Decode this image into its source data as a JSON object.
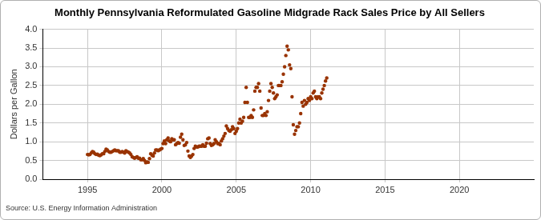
{
  "chart_data": {
    "type": "scatter",
    "title": "Monthly Pennsylvania Reformulated Gasoline Midgrade Rack Sales Price by All Sellers",
    "y_label": "Dollars per Gallon",
    "source": "Source: U.S. Energy Information Administration",
    "color": "#993300",
    "marker": "circle",
    "grid": true,
    "xlim": [
      1992,
      2025
    ],
    "xticks": [
      1995,
      2000,
      2005,
      2010,
      2015,
      2020
    ],
    "ylim": [
      0,
      4
    ],
    "yticks": [
      {
        "value": 0,
        "label": "0.0"
      },
      0.5,
      {
        "value": 1,
        "label": "1.0"
      },
      1.5,
      {
        "value": 2,
        "label": "2.0"
      },
      2.5,
      {
        "value": 3,
        "label": "3.0"
      },
      3.5,
      {
        "value": 4,
        "label": "4.0"
      }
    ],
    "x": [
      1995,
      1995.083,
      1995.167,
      1995.25,
      1995.333,
      1995.417,
      1995.5,
      1995.583,
      1995.667,
      1995.75,
      1995.833,
      1995.917,
      1996,
      1996.083,
      1996.167,
      1996.25,
      1996.333,
      1996.417,
      1996.5,
      1996.583,
      1996.667,
      1996.75,
      1996.833,
      1996.917,
      1997,
      1997.083,
      1997.167,
      1997.25,
      1997.333,
      1997.417,
      1997.5,
      1997.583,
      1997.667,
      1997.75,
      1997.833,
      1997.917,
      1998,
      1998.083,
      1998.167,
      1998.25,
      1998.333,
      1998.417,
      1998.5,
      1998.583,
      1998.667,
      1998.75,
      1998.833,
      1998.917,
      1999,
      1999.083,
      1999.167,
      1999.25,
      1999.333,
      1999.417,
      1999.5,
      1999.583,
      1999.667,
      1999.75,
      1999.833,
      1999.917,
      2000,
      2000.083,
      2000.167,
      2000.25,
      2000.333,
      2000.417,
      2000.5,
      2000.583,
      2000.667,
      2000.75,
      2000.833,
      2000.917,
      2001,
      2001.083,
      2001.167,
      2001.25,
      2001.333,
      2001.417,
      2001.5,
      2001.583,
      2001.667,
      2001.75,
      2001.833,
      2001.917,
      2002,
      2002.083,
      2002.167,
      2002.25,
      2002.333,
      2002.417,
      2002.5,
      2002.583,
      2002.667,
      2002.75,
      2002.833,
      2002.917,
      2003,
      2003.083,
      2003.167,
      2003.25,
      2003.333,
      2003.417,
      2003.5,
      2003.583,
      2003.667,
      2003.75,
      2003.833,
      2003.917,
      2004,
      2004.083,
      2004.167,
      2004.25,
      2004.333,
      2004.417,
      2004.5,
      2004.583,
      2004.667,
      2004.75,
      2004.833,
      2004.917,
      2005,
      2005.083,
      2005.167,
      2005.25,
      2005.333,
      2005.417,
      2005.5,
      2005.583,
      2005.667,
      2005.75,
      2005.833,
      2005.917,
      2006,
      2006.083,
      2006.167,
      2006.25,
      2006.333,
      2006.417,
      2006.5,
      2006.583,
      2006.667,
      2006.75,
      2006.833,
      2006.917,
      2007,
      2007.083,
      2007.167,
      2007.25,
      2007.333,
      2007.417,
      2007.5,
      2007.583,
      2007.667,
      2007.75,
      2007.833,
      2007.917,
      2008,
      2008.083,
      2008.167,
      2008.25,
      2008.333,
      2008.417,
      2008.5,
      2008.583,
      2008.667,
      2008.75,
      2008.833,
      2008.917,
      2009,
      2009.083,
      2009.167,
      2009.25,
      2009.333,
      2009.417,
      2009.5,
      2009.583,
      2009.667,
      2009.75,
      2009.833,
      2009.917,
      2010,
      2010.083,
      2010.167,
      2010.25,
      2010.333,
      2010.417,
      2010.5,
      2010.583,
      2010.667,
      2010.75,
      2010.833,
      2010.917,
      2011,
      2011.083
    ],
    "values": [
      0.66,
      0.65,
      0.66,
      0.7,
      0.74,
      0.72,
      0.68,
      0.66,
      0.67,
      0.64,
      0.63,
      0.65,
      0.68,
      0.68,
      0.74,
      0.8,
      0.78,
      0.74,
      0.72,
      0.72,
      0.74,
      0.76,
      0.78,
      0.76,
      0.76,
      0.76,
      0.72,
      0.72,
      0.74,
      0.72,
      0.7,
      0.76,
      0.74,
      0.72,
      0.7,
      0.66,
      0.6,
      0.58,
      0.56,
      0.58,
      0.6,
      0.56,
      0.56,
      0.52,
      0.52,
      0.55,
      0.5,
      0.44,
      0.46,
      0.45,
      0.55,
      0.68,
      0.64,
      0.62,
      0.7,
      0.78,
      0.78,
      0.76,
      0.78,
      0.8,
      0.82,
      0.95,
      1.02,
      0.95,
      1.05,
      1.1,
      1.02,
      1.0,
      1.08,
      1.05,
      1.05,
      0.92,
      0.95,
      0.98,
      0.96,
      1.12,
      1.2,
      1.05,
      0.9,
      0.92,
      0.98,
      0.75,
      0.62,
      0.58,
      0.62,
      0.66,
      0.82,
      0.88,
      0.86,
      0.86,
      0.88,
      0.88,
      0.88,
      0.92,
      0.88,
      0.88,
      0.96,
      1.08,
      1.1,
      0.95,
      0.9,
      0.92,
      0.95,
      1.05,
      1.0,
      0.95,
      0.95,
      0.92,
      1.02,
      1.08,
      1.15,
      1.22,
      1.42,
      1.35,
      1.3,
      1.28,
      1.32,
      1.4,
      1.35,
      1.22,
      1.28,
      1.35,
      1.5,
      1.6,
      1.5,
      1.55,
      1.65,
      2.05,
      2.45,
      2.05,
      1.65,
      1.65,
      1.7,
      1.65,
      1.85,
      2.35,
      2.45,
      2.45,
      2.55,
      2.35,
      1.9,
      1.7,
      1.7,
      1.75,
      1.7,
      1.8,
      2.1,
      2.35,
      2.55,
      2.45,
      2.3,
      2.15,
      2.2,
      2.25,
      2.5,
      2.5,
      2.5,
      2.6,
      2.8,
      3.0,
      3.3,
      3.55,
      3.45,
      3.05,
      2.95,
      2.2,
      1.45,
      1.2,
      1.3,
      1.4,
      1.4,
      1.5,
      1.75,
      2.05,
      1.95,
      2.1,
      2.0,
      2.05,
      2.15,
      2.1,
      2.2,
      2.15,
      2.3,
      2.35,
      2.2,
      2.15,
      2.2,
      2.2,
      2.15,
      2.3,
      2.4,
      2.5,
      2.62,
      2.7
    ]
  }
}
